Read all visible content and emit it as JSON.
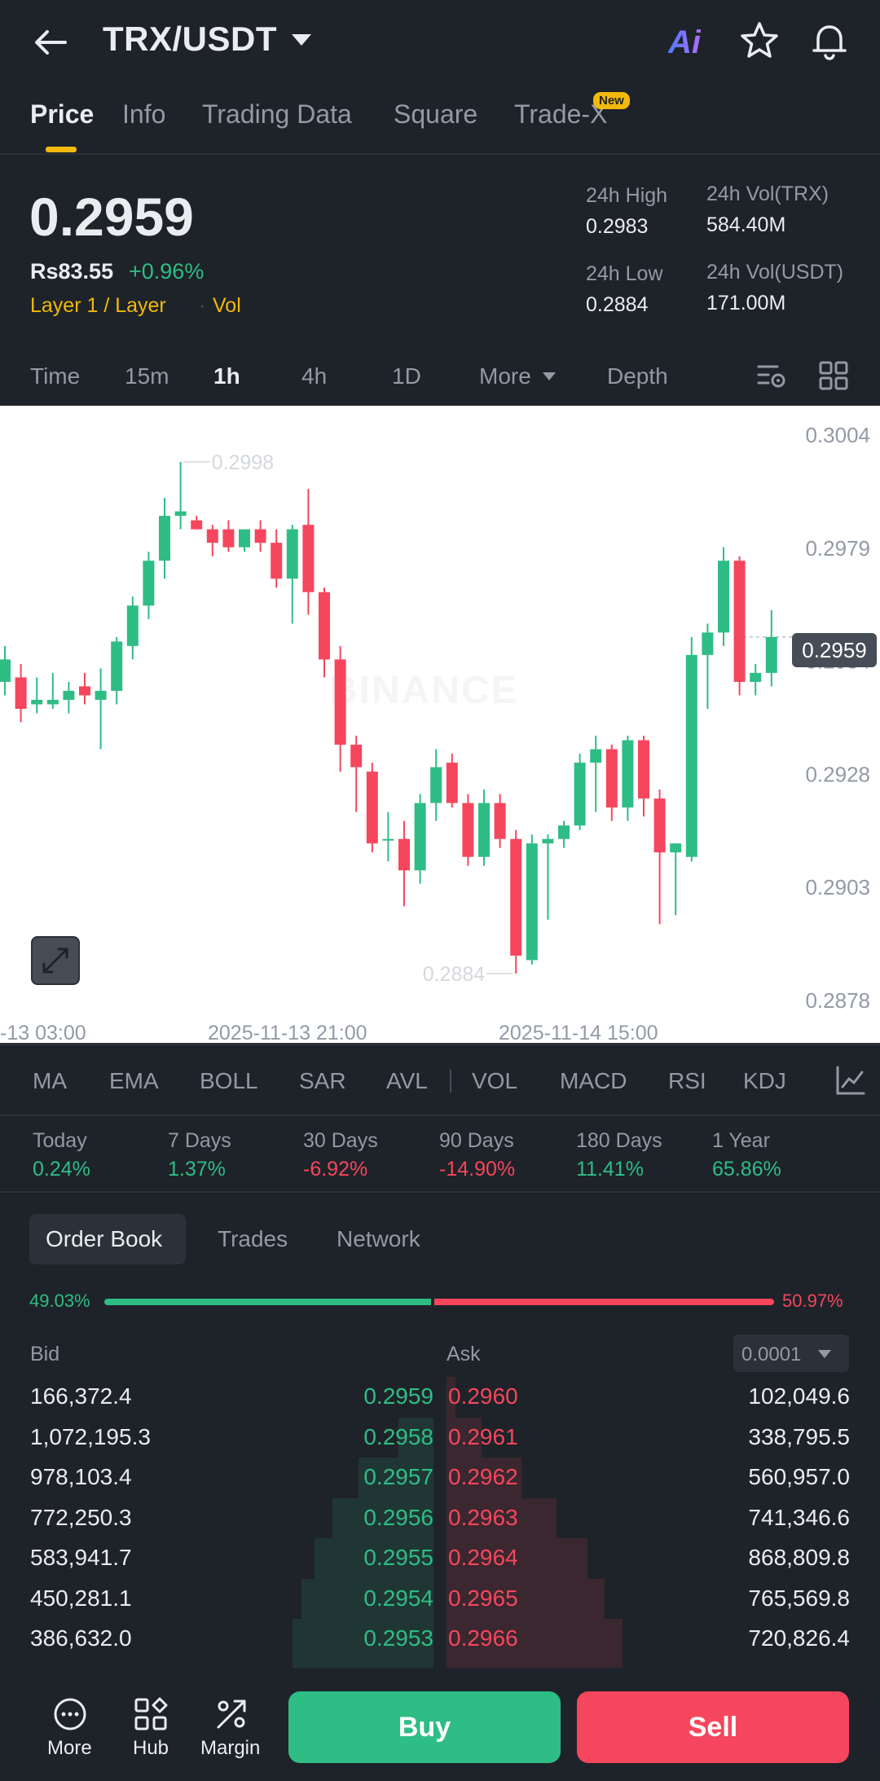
{
  "header": {
    "pair": "TRX/USDT",
    "icons": [
      "back-arrow-icon",
      "ai-icon",
      "star-icon",
      "bell-icon"
    ],
    "ai_label": "Ai",
    "tabs": [
      {
        "label": "Price",
        "active": true
      },
      {
        "label": "Info"
      },
      {
        "label": "Trading Data"
      },
      {
        "label": "Square"
      },
      {
        "label": "Trade-X",
        "badge": "New"
      }
    ]
  },
  "ticker": {
    "last_price": "0.2959",
    "fiat_price": "Rs83.55",
    "change": "+0.96%",
    "tags": [
      "Layer 1 / Layer",
      "Vol"
    ],
    "high_label": "24h High",
    "high_value": "0.2983",
    "low_label": "24h Low",
    "low_value": "0.2884",
    "vol_base_label": "24h Vol(TRX)",
    "vol_base_value": "584.40M",
    "vol_quote_label": "24h Vol(USDT)",
    "vol_quote_value": "171.00M"
  },
  "timeframes": {
    "items": [
      "Time",
      "15m",
      "1h",
      "4h",
      "1D",
      "More",
      "Depth"
    ],
    "active": "1h"
  },
  "chart": {
    "current_price_tag": "0.2959",
    "watermark": "BINANCE",
    "high_marker": "0.2998",
    "low_marker": "0.2884"
  },
  "chart_data": {
    "type": "candlestick",
    "y_ticks": [
      "0.3004",
      "0.2979",
      "0.2954",
      "0.2928",
      "0.2903",
      "0.2878"
    ],
    "x_ticks": [
      "-13 03:00",
      "2025-11-13 21:00",
      "2025-11-14 15:00"
    ],
    "ylim": [
      0.2878,
      0.3004
    ],
    "candles": [
      {
        "o": 0.2949,
        "h": 0.2957,
        "l": 0.2946,
        "c": 0.2954
      },
      {
        "o": 0.295,
        "h": 0.2953,
        "l": 0.294,
        "c": 0.2943
      },
      {
        "o": 0.2944,
        "h": 0.295,
        "l": 0.2942,
        "c": 0.2945
      },
      {
        "o": 0.2944,
        "h": 0.2951,
        "l": 0.2943,
        "c": 0.2945
      },
      {
        "o": 0.2945,
        "h": 0.2949,
        "l": 0.2942,
        "c": 0.2947
      },
      {
        "o": 0.2948,
        "h": 0.2951,
        "l": 0.2944,
        "c": 0.2946
      },
      {
        "o": 0.2945,
        "h": 0.2952,
        "l": 0.2934,
        "c": 0.2947
      },
      {
        "o": 0.2947,
        "h": 0.2959,
        "l": 0.2944,
        "c": 0.2958
      },
      {
        "o": 0.2957,
        "h": 0.2968,
        "l": 0.2954,
        "c": 0.2966
      },
      {
        "o": 0.2966,
        "h": 0.2978,
        "l": 0.2963,
        "c": 0.2976
      },
      {
        "o": 0.2976,
        "h": 0.299,
        "l": 0.2972,
        "c": 0.2986
      },
      {
        "o": 0.2986,
        "h": 0.2998,
        "l": 0.2983,
        "c": 0.2987
      },
      {
        "o": 0.2985,
        "h": 0.2986,
        "l": 0.2983,
        "c": 0.2983
      },
      {
        "o": 0.2983,
        "h": 0.2984,
        "l": 0.2977,
        "c": 0.298
      },
      {
        "o": 0.2983,
        "h": 0.2985,
        "l": 0.2978,
        "c": 0.2979
      },
      {
        "o": 0.2979,
        "h": 0.2983,
        "l": 0.2978,
        "c": 0.2983
      },
      {
        "o": 0.2983,
        "h": 0.2985,
        "l": 0.2978,
        "c": 0.298
      },
      {
        "o": 0.298,
        "h": 0.2983,
        "l": 0.297,
        "c": 0.2972
      },
      {
        "o": 0.2972,
        "h": 0.2984,
        "l": 0.2962,
        "c": 0.2983
      },
      {
        "o": 0.2984,
        "h": 0.2992,
        "l": 0.2964,
        "c": 0.2969
      },
      {
        "o": 0.2969,
        "h": 0.297,
        "l": 0.295,
        "c": 0.2954
      },
      {
        "o": 0.2954,
        "h": 0.2957,
        "l": 0.2929,
        "c": 0.2935
      },
      {
        "o": 0.2935,
        "h": 0.2937,
        "l": 0.292,
        "c": 0.293
      },
      {
        "o": 0.2929,
        "h": 0.2931,
        "l": 0.2911,
        "c": 0.2913
      },
      {
        "o": 0.2914,
        "h": 0.292,
        "l": 0.2909,
        "c": 0.2914
      },
      {
        "o": 0.2914,
        "h": 0.2918,
        "l": 0.2899,
        "c": 0.2907
      },
      {
        "o": 0.2907,
        "h": 0.2924,
        "l": 0.2904,
        "c": 0.2922
      },
      {
        "o": 0.2922,
        "h": 0.2934,
        "l": 0.2918,
        "c": 0.293
      },
      {
        "o": 0.2931,
        "h": 0.2933,
        "l": 0.2921,
        "c": 0.2922
      },
      {
        "o": 0.2922,
        "h": 0.2924,
        "l": 0.2908,
        "c": 0.291
      },
      {
        "o": 0.291,
        "h": 0.2925,
        "l": 0.2908,
        "c": 0.2922
      },
      {
        "o": 0.2922,
        "h": 0.2924,
        "l": 0.2912,
        "c": 0.2914
      },
      {
        "o": 0.2914,
        "h": 0.2916,
        "l": 0.2884,
        "c": 0.2888
      },
      {
        "o": 0.2887,
        "h": 0.2915,
        "l": 0.2886,
        "c": 0.2913
      },
      {
        "o": 0.2913,
        "h": 0.2915,
        "l": 0.2896,
        "c": 0.2914
      },
      {
        "o": 0.2914,
        "h": 0.2918,
        "l": 0.2912,
        "c": 0.2917
      },
      {
        "o": 0.2917,
        "h": 0.2933,
        "l": 0.2916,
        "c": 0.2931
      },
      {
        "o": 0.2931,
        "h": 0.2937,
        "l": 0.292,
        "c": 0.2934
      },
      {
        "o": 0.2934,
        "h": 0.2935,
        "l": 0.2918,
        "c": 0.2921
      },
      {
        "o": 0.2921,
        "h": 0.2937,
        "l": 0.2918,
        "c": 0.2936
      },
      {
        "o": 0.2936,
        "h": 0.2937,
        "l": 0.2919,
        "c": 0.2923
      },
      {
        "o": 0.2923,
        "h": 0.2925,
        "l": 0.2895,
        "c": 0.2911
      },
      {
        "o": 0.2911,
        "h": 0.2913,
        "l": 0.2897,
        "c": 0.2913
      },
      {
        "o": 0.291,
        "h": 0.2959,
        "l": 0.2909,
        "c": 0.2955
      },
      {
        "o": 0.2955,
        "h": 0.2962,
        "l": 0.2943,
        "c": 0.296
      },
      {
        "o": 0.296,
        "h": 0.2979,
        "l": 0.2957,
        "c": 0.2976
      },
      {
        "o": 0.2976,
        "h": 0.2977,
        "l": 0.2946,
        "c": 0.2949
      },
      {
        "o": 0.2949,
        "h": 0.2953,
        "l": 0.2946,
        "c": 0.2951
      },
      {
        "o": 0.2951,
        "h": 0.2965,
        "l": 0.2948,
        "c": 0.2959
      }
    ]
  },
  "indicators": [
    "MA",
    "EMA",
    "BOLL",
    "SAR",
    "AVL",
    "VOL",
    "MACD",
    "RSI",
    "KDJ"
  ],
  "performance": [
    {
      "label": "Today",
      "value": "0.24%",
      "trend": "up"
    },
    {
      "label": "7 Days",
      "value": "1.37%",
      "trend": "up"
    },
    {
      "label": "30 Days",
      "value": "-6.92%",
      "trend": "down"
    },
    {
      "label": "90 Days",
      "value": "-14.90%",
      "trend": "down"
    },
    {
      "label": "180 Days",
      "value": "11.41%",
      "trend": "up"
    },
    {
      "label": "1 Year",
      "value": "65.86%",
      "trend": "up"
    }
  ],
  "orderbook": {
    "tabs": [
      "Order Book",
      "Trades",
      "Network"
    ],
    "bid_ratio": "49.03%",
    "ask_ratio": "50.97%",
    "bid_ratio_value": 49.03,
    "bid_label": "Bid",
    "ask_label": "Ask",
    "precision": "0.0001",
    "rows": [
      {
        "bid_qty": "166,372.4",
        "bid_price": "0.2959",
        "ask_price": "0.2960",
        "ask_qty": "102,049.6",
        "bid_depth": 0.0,
        "ask_depth": 0.02
      },
      {
        "bid_qty": "1,072,195.3",
        "bid_price": "0.2958",
        "ask_price": "0.2961",
        "ask_qty": "338,795.5",
        "bid_depth": 0.08,
        "ask_depth": 0.08
      },
      {
        "bid_qty": "978,103.4",
        "bid_price": "0.2957",
        "ask_price": "0.2962",
        "ask_qty": "560,957.0",
        "bid_depth": 0.17,
        "ask_depth": 0.17
      },
      {
        "bid_qty": "772,250.3",
        "bid_price": "0.2956",
        "ask_price": "0.2963",
        "ask_qty": "741,346.6",
        "bid_depth": 0.23,
        "ask_depth": 0.25
      },
      {
        "bid_qty": "583,941.7",
        "bid_price": "0.2955",
        "ask_price": "0.2964",
        "ask_qty": "868,809.8",
        "bid_depth": 0.27,
        "ask_depth": 0.32
      },
      {
        "bid_qty": "450,281.1",
        "bid_price": "0.2954",
        "ask_price": "0.2965",
        "ask_qty": "765,569.8",
        "bid_depth": 0.3,
        "ask_depth": 0.36
      },
      {
        "bid_qty": "386,632.0",
        "bid_price": "0.2953",
        "ask_price": "0.2966",
        "ask_qty": "720,826.4",
        "bid_depth": 0.32,
        "ask_depth": 0.4
      }
    ]
  },
  "bottom_bar": {
    "nav": [
      {
        "label": "More",
        "icon": "more-dots-icon"
      },
      {
        "label": "Hub",
        "icon": "hub-grid-icon"
      },
      {
        "label": "Margin",
        "icon": "margin-icon"
      }
    ],
    "buy_label": "Buy",
    "sell_label": "Sell"
  },
  "colors": {
    "bg": "#1e2329",
    "up": "#2ebd85",
    "down": "#f6465d",
    "accent": "#f0b90b"
  }
}
